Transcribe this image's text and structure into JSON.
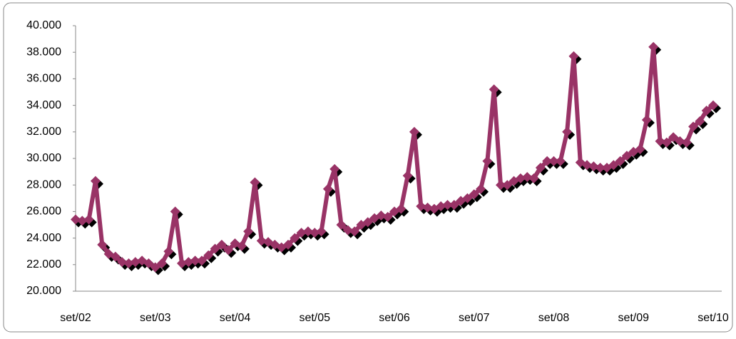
{
  "chart_data": {
    "type": "line",
    "categories": [
      "set/02",
      null,
      null,
      null,
      null,
      null,
      null,
      null,
      null,
      null,
      null,
      null,
      "set/03",
      null,
      null,
      null,
      null,
      null,
      null,
      null,
      null,
      null,
      null,
      null,
      "set/04",
      null,
      null,
      null,
      null,
      null,
      null,
      null,
      null,
      null,
      null,
      null,
      "set/05",
      null,
      null,
      null,
      null,
      null,
      null,
      null,
      null,
      null,
      null,
      null,
      "set/06",
      null,
      null,
      null,
      null,
      null,
      null,
      null,
      null,
      null,
      null,
      null,
      "set/07",
      null,
      null,
      null,
      null,
      null,
      null,
      null,
      null,
      null,
      null,
      null,
      "set/08",
      null,
      null,
      null,
      null,
      null,
      null,
      null,
      null,
      null,
      null,
      null,
      "set/09",
      null,
      null,
      null,
      null,
      null,
      null,
      null,
      null,
      null,
      null,
      null,
      "set/10"
    ],
    "values": [
      25400,
      25300,
      25400,
      28300,
      23500,
      22800,
      22600,
      22200,
      22100,
      22200,
      22300,
      22100,
      21800,
      22100,
      23000,
      26000,
      22100,
      22200,
      22300,
      22300,
      22700,
      23200,
      23500,
      23100,
      23600,
      23400,
      24500,
      28200,
      23800,
      23700,
      23500,
      23300,
      23500,
      24000,
      24400,
      24500,
      24400,
      24500,
      27700,
      29200,
      25000,
      24600,
      24500,
      25000,
      25200,
      25500,
      25700,
      25600,
      26000,
      26200,
      28700,
      32000,
      26400,
      26300,
      26200,
      26400,
      26500,
      26500,
      26800,
      27000,
      27300,
      27700,
      29800,
      35200,
      28000,
      28000,
      28300,
      28500,
      28600,
      28500,
      29300,
      29800,
      29800,
      29800,
      32000,
      37700,
      29700,
      29500,
      29400,
      29300,
      29300,
      29500,
      29800,
      30200,
      30500,
      30700,
      32900,
      38400,
      31300,
      31200,
      31600,
      31300,
      31200,
      32400,
      32800,
      33600,
      34000
    ],
    "color": "#993366",
    "ylim": [
      20000,
      40000
    ],
    "yticks": [
      {
        "value": 20000,
        "label": "20.000"
      },
      {
        "value": 22000,
        "label": "22.000"
      },
      {
        "value": 24000,
        "label": "24.000"
      },
      {
        "value": 26000,
        "label": "26.000"
      },
      {
        "value": 28000,
        "label": "28.000"
      },
      {
        "value": 30000,
        "label": "30.000"
      },
      {
        "value": 32000,
        "label": "32.000"
      },
      {
        "value": 34000,
        "label": "34.000"
      },
      {
        "value": 36000,
        "label": "36.000"
      },
      {
        "value": 38000,
        "label": "38.000"
      },
      {
        "value": 40000,
        "label": "40.000"
      }
    ],
    "grid": false
  }
}
